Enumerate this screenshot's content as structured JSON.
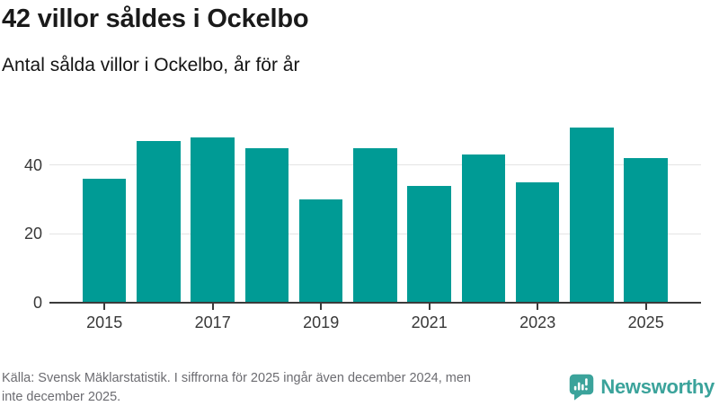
{
  "chart_data": {
    "type": "bar",
    "title": "42 villor såldes i Ockelbo",
    "subtitle": "Antal sålda villor i Ockelbo, år för år",
    "categories": [
      "2015",
      "2016",
      "2017",
      "2018",
      "2019",
      "2020",
      "2021",
      "2022",
      "2023",
      "2024",
      "2025"
    ],
    "values": [
      36,
      47,
      48,
      45,
      30,
      45,
      34,
      43,
      35,
      51,
      42
    ],
    "xlabel": "",
    "ylabel": "",
    "ylim": [
      0,
      54
    ],
    "yticks": [
      0,
      20,
      40
    ],
    "xtick_labels": [
      "2015",
      "2017",
      "2019",
      "2021",
      "2023",
      "2025"
    ],
    "grid": true,
    "legend": false,
    "bar_color": "#009b95"
  },
  "footer": {
    "source_text": "Källa: Svensk Mäklarstatistik. I siffrorna för 2025 ingår även december 2024, men\ninte december 2025.",
    "logo": {
      "text": "Newsworthy",
      "color": "#3ba39b",
      "icon": "newsworthy-bar-chart-bubble-icon"
    }
  }
}
